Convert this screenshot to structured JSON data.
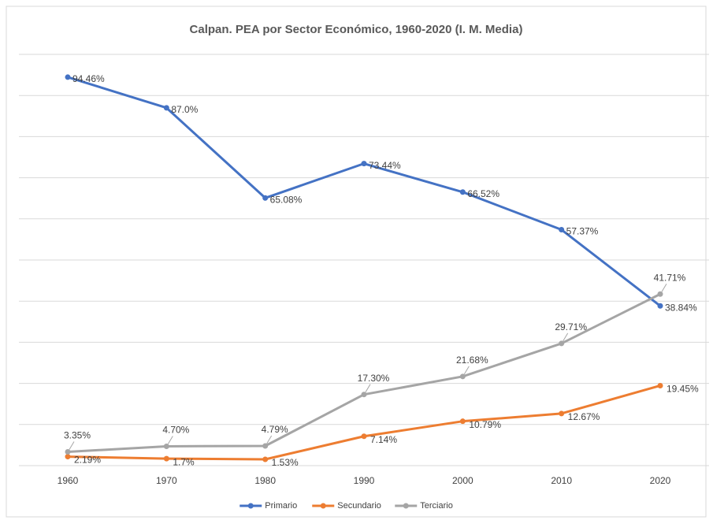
{
  "chart_data": {
    "type": "line",
    "title": "Calpan. PEA por Sector Económico, 1960-2020 (I. M. Media)",
    "categories": [
      "1960",
      "1970",
      "1980",
      "1990",
      "2000",
      "2010",
      "2020"
    ],
    "series": [
      {
        "name": "Primario",
        "color": "#4472c4",
        "values": [
          94.46,
          87.0,
          65.08,
          73.44,
          66.52,
          57.37,
          38.84
        ],
        "value_labels": [
          "94.46%",
          "87.0%",
          "65.08%",
          "73.44%",
          "66.52%",
          "57.37%",
          "38.84%"
        ]
      },
      {
        "name": "Secundario",
        "color": "#ed7d31",
        "values": [
          2.19,
          1.7,
          1.53,
          7.14,
          10.79,
          12.67,
          19.45
        ],
        "value_labels": [
          "2.19%",
          "1.7%",
          "1.53%",
          "7.14%",
          "10.79%",
          "12.67%",
          "19.45%"
        ]
      },
      {
        "name": "Terciario",
        "color": "#a5a5a5",
        "values": [
          3.35,
          4.7,
          4.79,
          17.3,
          21.68,
          29.71,
          41.71
        ],
        "value_labels": [
          "3.35%",
          "4.70%",
          "4.79%",
          "17.30%",
          "21.68%",
          "29.71%",
          "41.71%"
        ]
      }
    ],
    "ylim": [
      0,
      100
    ],
    "yticks": [
      0,
      10,
      20,
      30,
      40,
      50,
      60,
      70,
      80,
      90,
      100
    ],
    "grid": true,
    "legend": "bottom"
  }
}
